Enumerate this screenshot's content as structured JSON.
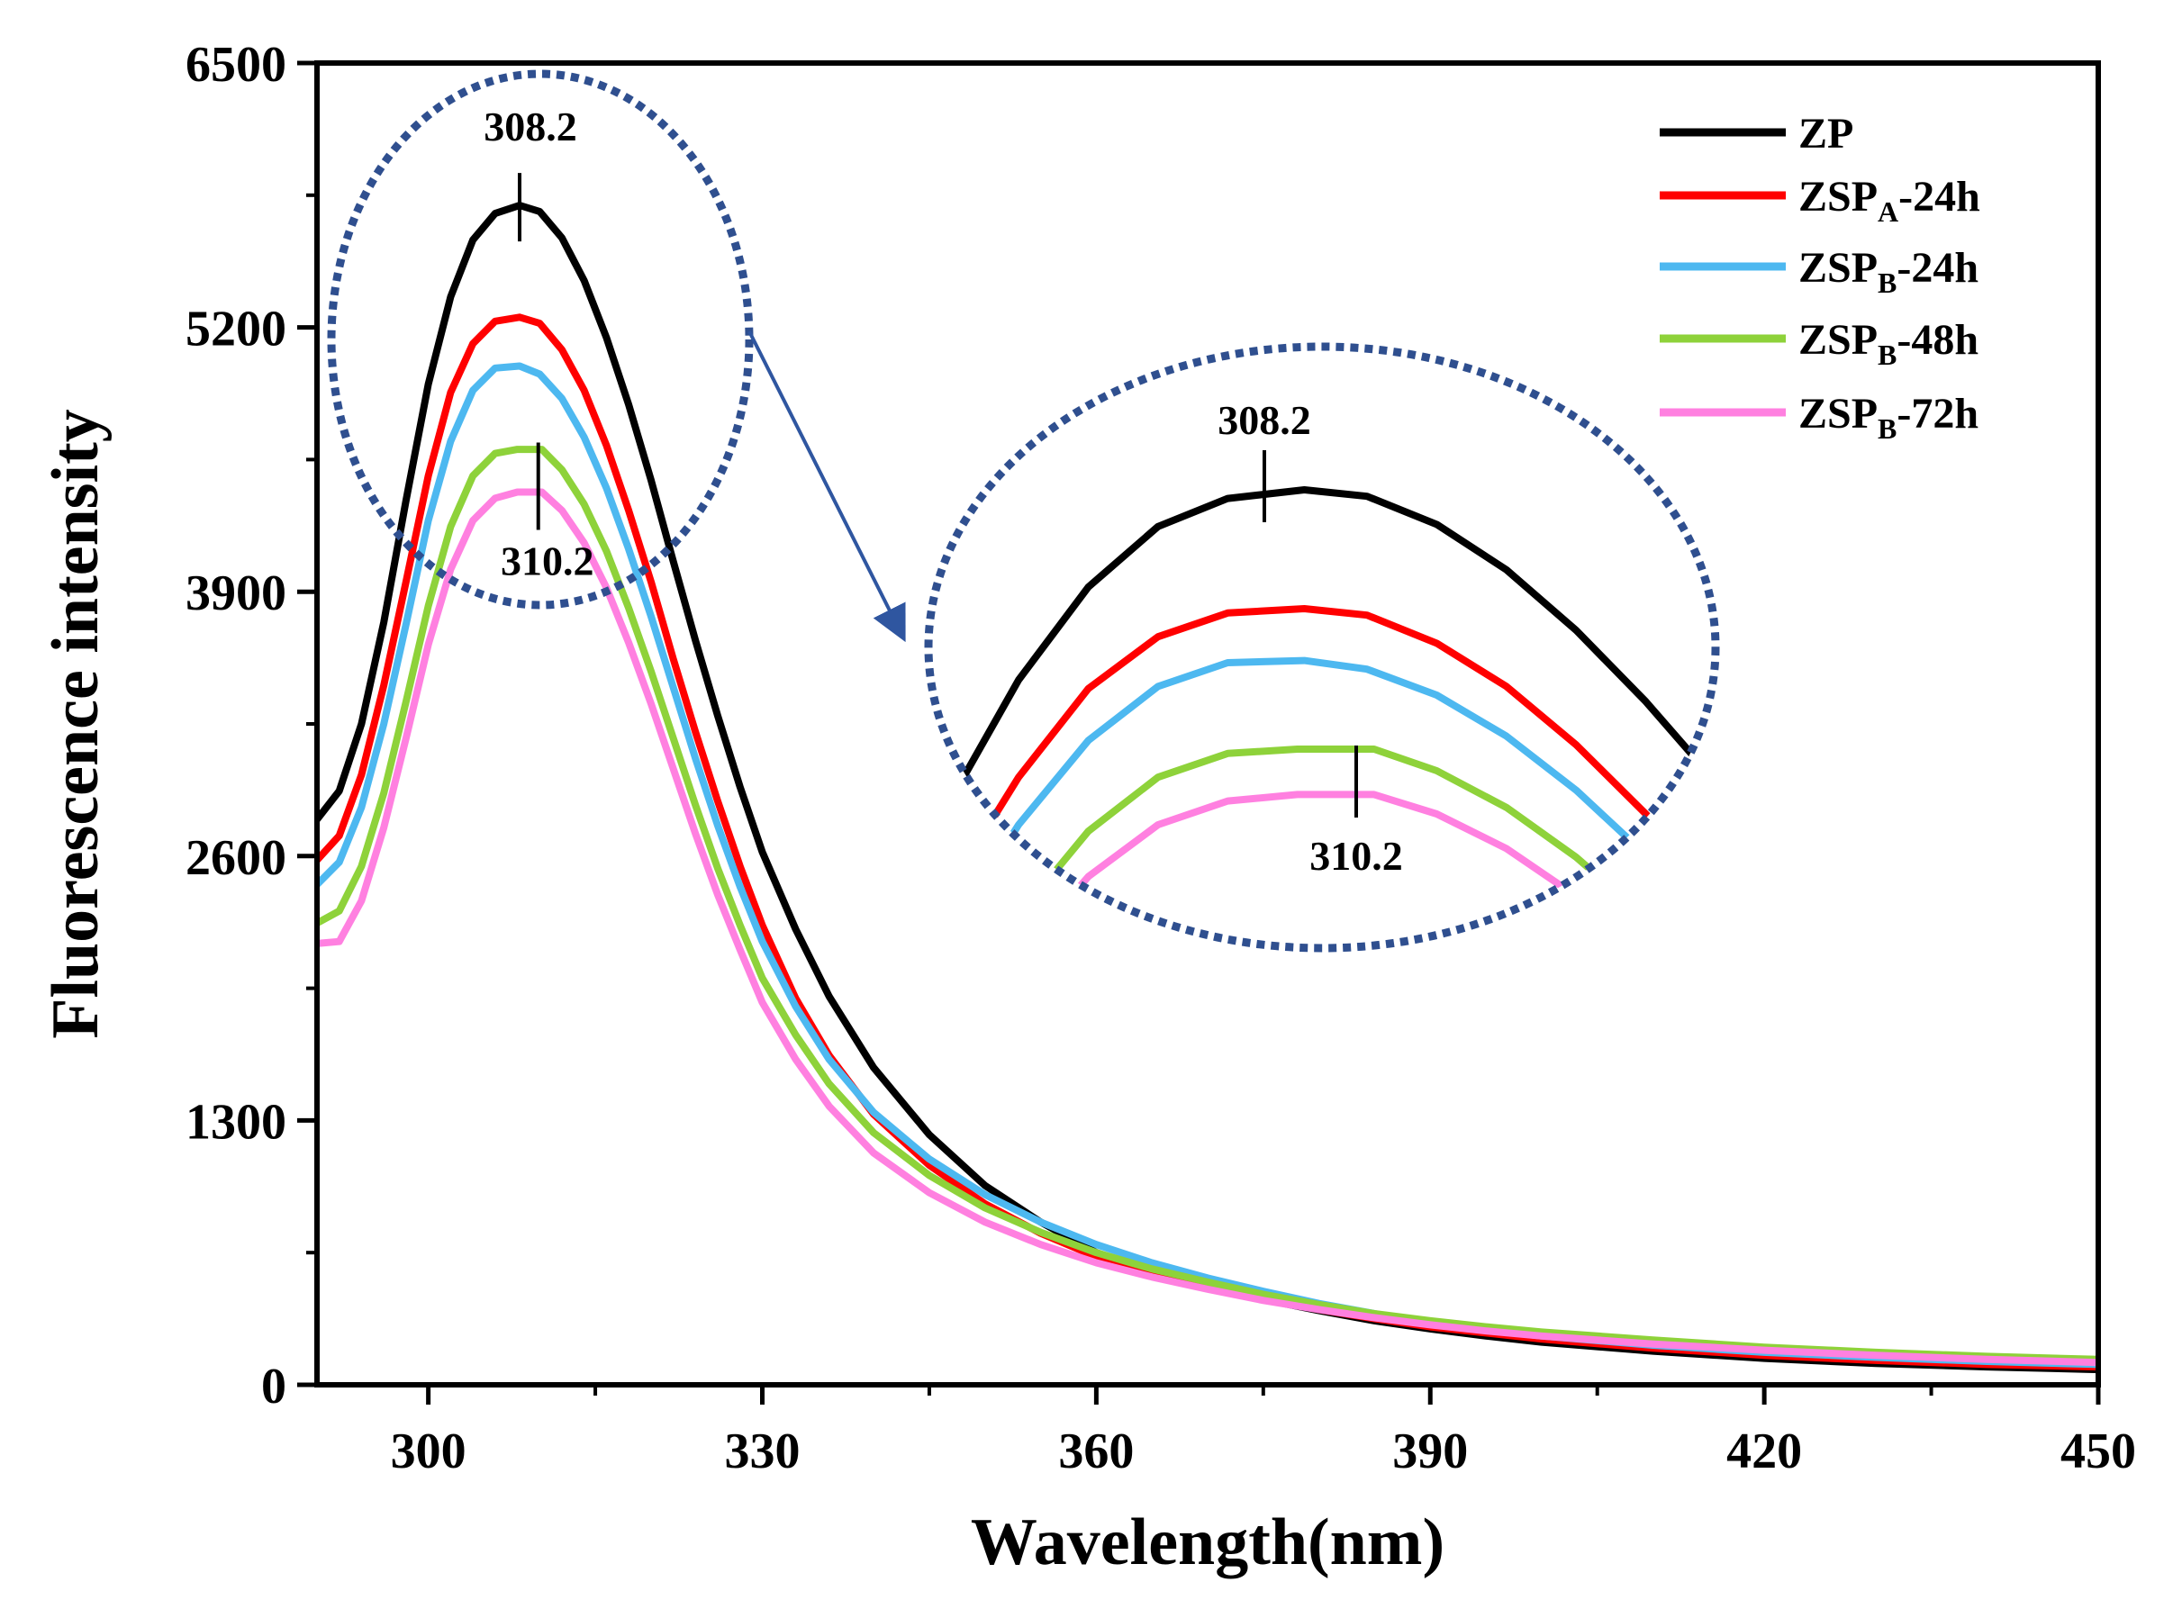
{
  "chart_data": {
    "type": "line",
    "xlabel": "Wavelength(nm)",
    "ylabel": "Fluorescence intensity",
    "xlim": [
      290,
      450
    ],
    "ylim": [
      0,
      6500
    ],
    "xticks": [
      "300",
      "330",
      "360",
      "390",
      "420",
      "450"
    ],
    "yticks": [
      "0",
      "1300",
      "2600",
      "3900",
      "5200",
      "6500"
    ],
    "legend_position": "top-right",
    "series": [
      {
        "id": "zp",
        "name_base": "ZP",
        "name_sub": "",
        "name_suffix": "",
        "color": "#000000",
        "x": [
          290,
          292,
          294,
          296,
          298,
          300,
          302,
          304,
          306,
          308.2,
          310,
          312,
          314,
          316,
          318,
          320,
          322,
          324,
          326,
          328,
          330,
          333,
          336,
          340,
          345,
          350,
          355,
          360,
          365,
          370,
          375,
          380,
          385,
          390,
          395,
          400,
          410,
          420,
          430,
          440,
          450
        ],
        "y": [
          2780,
          2920,
          3250,
          3750,
          4350,
          4920,
          5350,
          5630,
          5760,
          5800,
          5770,
          5640,
          5430,
          5150,
          4820,
          4450,
          4050,
          3660,
          3290,
          2940,
          2620,
          2240,
          1910,
          1560,
          1230,
          980,
          800,
          650,
          555,
          480,
          420,
          365,
          315,
          275,
          240,
          210,
          165,
          130,
          105,
          88,
          75
        ]
      },
      {
        "id": "zspa24",
        "name_base": "ZSP",
        "name_sub": "A",
        "name_suffix": "-24h",
        "color": "#ff0000",
        "x": [
          290,
          292,
          294,
          296,
          298,
          300,
          302,
          304,
          306,
          308.2,
          310,
          312,
          314,
          316,
          318,
          320,
          322,
          324,
          326,
          328,
          330,
          333,
          336,
          340,
          345,
          350,
          355,
          360,
          365,
          370,
          375,
          380,
          385,
          390,
          395,
          400,
          410,
          420,
          430,
          440,
          450
        ],
        "y": [
          2580,
          2700,
          3000,
          3440,
          3950,
          4470,
          4880,
          5120,
          5230,
          5250,
          5220,
          5090,
          4890,
          4620,
          4300,
          3950,
          3570,
          3210,
          2870,
          2550,
          2260,
          1900,
          1620,
          1330,
          1080,
          890,
          745,
          630,
          545,
          475,
          420,
          370,
          325,
          285,
          255,
          225,
          180,
          145,
          120,
          100,
          88
        ]
      },
      {
        "id": "zspb24",
        "name_base": "ZSP",
        "name_sub": "B",
        "name_suffix": "-24h",
        "color": "#4db8f0",
        "x": [
          290,
          292,
          294,
          296,
          298,
          300,
          302,
          304,
          306,
          308.2,
          310,
          312,
          314,
          316,
          318,
          320,
          322,
          324,
          326,
          328,
          330,
          333,
          336,
          340,
          345,
          350,
          355,
          360,
          365,
          370,
          375,
          380,
          385,
          390,
          395,
          400,
          410,
          420,
          430,
          440,
          450
        ],
        "y": [
          2460,
          2570,
          2840,
          3250,
          3740,
          4250,
          4640,
          4890,
          5000,
          5010,
          4970,
          4850,
          4660,
          4410,
          4110,
          3780,
          3430,
          3080,
          2750,
          2450,
          2180,
          1860,
          1600,
          1340,
          1110,
          935,
          800,
          690,
          600,
          525,
          460,
          400,
          350,
          305,
          270,
          240,
          195,
          160,
          135,
          115,
          100
        ]
      },
      {
        "id": "zspb48",
        "name_base": "ZSP",
        "name_sub": "B",
        "name_suffix": "-48h",
        "color": "#8ed23a",
        "x": [
          290,
          292,
          294,
          296,
          298,
          300,
          302,
          304,
          306,
          308,
          310.2,
          312,
          314,
          316,
          318,
          320,
          322,
          324,
          326,
          328,
          330,
          333,
          336,
          340,
          345,
          350,
          355,
          360,
          365,
          370,
          375,
          380,
          385,
          390,
          395,
          400,
          410,
          420,
          430,
          440,
          450
        ],
        "y": [
          2270,
          2330,
          2550,
          2910,
          3360,
          3830,
          4220,
          4470,
          4580,
          4600,
          4600,
          4500,
          4330,
          4100,
          3820,
          3510,
          3180,
          2850,
          2540,
          2260,
          2000,
          1720,
          1480,
          1240,
          1030,
          870,
          750,
          650,
          570,
          505,
          445,
          395,
          350,
          315,
          285,
          260,
          220,
          185,
          160,
          140,
          125
        ]
      },
      {
        "id": "zspb72",
        "name_base": "ZSP",
        "name_sub": "B",
        "name_suffix": "-72h",
        "color": "#ff80e0",
        "x": [
          290,
          292,
          294,
          296,
          298,
          300,
          302,
          304,
          306,
          308,
          310.2,
          312,
          314,
          316,
          318,
          320,
          322,
          324,
          326,
          328,
          330,
          333,
          336,
          340,
          345,
          350,
          355,
          360,
          365,
          370,
          375,
          380,
          385,
          390,
          395,
          400,
          410,
          420,
          430,
          440,
          450
        ],
        "y": [
          2170,
          2180,
          2380,
          2740,
          3180,
          3640,
          4010,
          4250,
          4360,
          4390,
          4390,
          4300,
          4140,
          3920,
          3650,
          3350,
          3030,
          2710,
          2410,
          2140,
          1880,
          1600,
          1370,
          1140,
          945,
          800,
          690,
          600,
          530,
          470,
          415,
          370,
          330,
          295,
          265,
          240,
          200,
          170,
          145,
          125,
          110
        ]
      }
    ],
    "annotations": [
      {
        "text": "308.2",
        "x": 308.2,
        "series": "zp"
      },
      {
        "text": "310.2",
        "x": 310.2,
        "series": "zspb72"
      }
    ],
    "inset": {
      "description": "magnified view of peak region",
      "labels": [
        "308.2",
        "310.2"
      ]
    }
  }
}
